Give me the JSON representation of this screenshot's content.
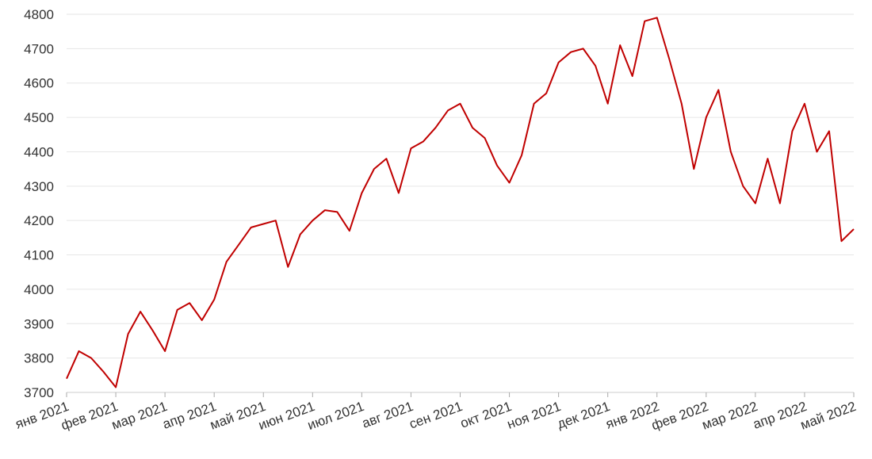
{
  "chart_data": {
    "type": "line",
    "categories": [
      "янв 2021",
      null,
      null,
      null,
      "фев 2021",
      null,
      null,
      null,
      "мар 2021",
      null,
      null,
      null,
      "апр 2021",
      null,
      null,
      null,
      "май 2021",
      null,
      null,
      null,
      "июн 2021",
      null,
      null,
      null,
      "июл 2021",
      null,
      null,
      null,
      "авг 2021",
      null,
      null,
      null,
      "сен 2021",
      null,
      null,
      null,
      "окт 2021",
      null,
      null,
      null,
      "ноя 2021",
      null,
      null,
      null,
      "дек 2021",
      null,
      null,
      null,
      "янв 2022",
      null,
      null,
      null,
      "фев 2022",
      null,
      null,
      null,
      "мар 2022",
      null,
      null,
      null,
      "апр 2022",
      null,
      null,
      null,
      "май 2022"
    ],
    "series": [
      {
        "color": "#c00000",
        "values": [
          3740,
          3820,
          3800,
          3760,
          3715,
          3870,
          3935,
          3880,
          3820,
          3940,
          3960,
          3910,
          3970,
          4080,
          4130,
          4180,
          4190,
          4200,
          4065,
          4160,
          4200,
          4230,
          4225,
          4170,
          4280,
          4350,
          4380,
          4280,
          4410,
          4430,
          4470,
          4520,
          4540,
          4470,
          4440,
          4360,
          4310,
          4390,
          4540,
          4570,
          4660,
          4690,
          4700,
          4650,
          4540,
          4710,
          4620,
          4780,
          4790,
          4670,
          4540,
          4350,
          4500,
          4580,
          4400,
          4300,
          4250,
          4380,
          4250,
          4460,
          4540,
          4400,
          4460,
          4140,
          4175
        ]
      }
    ],
    "ylim": [
      3700,
      4800
    ],
    "yticks": [
      3700,
      3800,
      3900,
      4000,
      4100,
      4200,
      4300,
      4400,
      4500,
      4600,
      4700,
      4800
    ],
    "grid": true
  }
}
